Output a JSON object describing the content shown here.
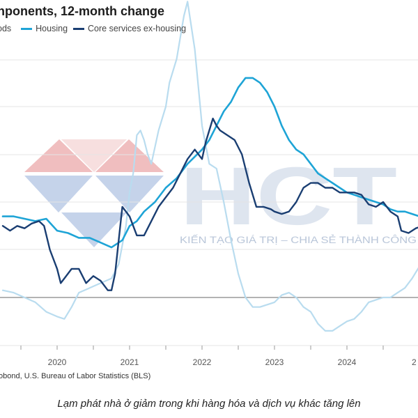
{
  "header": {
    "title": "nponents, 12-month change"
  },
  "legend_labels": [
    {
      "label": "ods",
      "color": "#b9dcef"
    },
    {
      "label": "Housing",
      "color": "#1ea4d6"
    },
    {
      "label": "Core services ex-housing",
      "color": "#1a3e72"
    }
  ],
  "source": "obond, U.S. Bureau of Labor Statistics (BLS)",
  "caption": "Lạm phát nhà ở giảm trong khi hàng hóa và dịch vụ khác tăng lên",
  "watermark": {
    "brand": "HCT",
    "tagline": "KIẾN TẠO GIÁ TRỊ – CHIA SẺ THÀNH CÔNG",
    "colors": {
      "red": "#e9a2a4",
      "blue": "#9fb6dc",
      "text": "#a8b8cf"
    }
  },
  "chart_data": {
    "type": "line",
    "x_ticks": [
      "2020",
      "2021",
      "2022",
      "2023",
      "2024",
      "2"
    ],
    "x_unit": "year",
    "xlim": [
      2019.25,
      2025.05
    ],
    "y_axis_labels": "not visible (cropped)",
    "grid": "horizontal",
    "series": [
      {
        "name": "ods",
        "color": "#b9dcef",
        "x": [
          2019.25,
          2019.4,
          2019.55,
          2019.7,
          2019.85,
          2020.0,
          2020.1,
          2020.2,
          2020.3,
          2020.45,
          2020.6,
          2020.75,
          2020.85,
          2020.95,
          2021.0,
          2021.05,
          2021.1,
          2021.15,
          2021.2,
          2021.25,
          2021.3,
          2021.4,
          2021.5,
          2021.55,
          2021.65,
          2021.75,
          2021.8,
          2021.9,
          2022.0,
          2022.1,
          2022.2,
          2022.3,
          2022.4,
          2022.5,
          2022.6,
          2022.7,
          2022.8,
          2022.9,
          2023.0,
          2023.1,
          2023.2,
          2023.3,
          2023.4,
          2023.5,
          2023.6,
          2023.7,
          2023.8,
          2023.9,
          2024.0,
          2024.1,
          2024.2,
          2024.3,
          2024.4,
          2024.5,
          2024.6,
          2024.7,
          2024.8,
          2024.9,
          2025.0,
          2025.05
        ],
        "y": [
          0.15,
          0.1,
          0.0,
          -0.1,
          -0.3,
          -0.4,
          -0.45,
          -0.2,
          0.1,
          0.2,
          0.3,
          0.4,
          0.7,
          1.5,
          2.2,
          2.6,
          3.4,
          3.5,
          3.3,
          3.0,
          2.8,
          3.5,
          4.0,
          4.5,
          5.0,
          5.9,
          6.2,
          5.2,
          3.6,
          2.8,
          2.7,
          2.0,
          1.2,
          0.5,
          0.0,
          -0.2,
          -0.2,
          -0.15,
          -0.1,
          0.05,
          0.1,
          0.0,
          -0.2,
          -0.3,
          -0.55,
          -0.7,
          -0.7,
          -0.6,
          -0.5,
          -0.45,
          -0.3,
          -0.1,
          -0.05,
          0.0,
          0.0,
          0.1,
          0.2,
          0.4,
          0.65,
          0.75
        ]
      },
      {
        "name": "Housing",
        "color": "#1ea4d6",
        "x": [
          2019.25,
          2019.4,
          2019.55,
          2019.7,
          2019.85,
          2020.0,
          2020.15,
          2020.3,
          2020.45,
          2020.6,
          2020.75,
          2020.9,
          2021.0,
          2021.1,
          2021.2,
          2021.35,
          2021.5,
          2021.65,
          2021.8,
          2022.0,
          2022.1,
          2022.2,
          2022.3,
          2022.4,
          2022.5,
          2022.55,
          2022.6,
          2022.7,
          2022.8,
          2022.9,
          2023.0,
          2023.1,
          2023.2,
          2023.3,
          2023.4,
          2023.5,
          2023.6,
          2023.7,
          2023.8,
          2023.9,
          2024.0,
          2024.1,
          2024.2,
          2024.3,
          2024.4,
          2024.5,
          2024.6,
          2024.7,
          2024.8,
          2024.9,
          2025.0,
          2025.05
        ],
        "y": [
          1.7,
          1.7,
          1.65,
          1.6,
          1.65,
          1.4,
          1.35,
          1.25,
          1.25,
          1.15,
          1.05,
          1.2,
          1.5,
          1.6,
          1.8,
          2.0,
          2.3,
          2.5,
          2.8,
          3.1,
          3.3,
          3.6,
          3.9,
          4.1,
          4.4,
          4.5,
          4.6,
          4.6,
          4.5,
          4.3,
          4.0,
          3.6,
          3.3,
          3.1,
          3.0,
          2.8,
          2.6,
          2.5,
          2.4,
          2.3,
          2.2,
          2.15,
          2.1,
          2.05,
          2.0,
          1.95,
          1.85,
          1.8,
          1.8,
          1.75,
          1.7,
          1.7
        ]
      },
      {
        "name": "Core services ex-housing",
        "color": "#1a3e72",
        "x": [
          2019.25,
          2019.35,
          2019.45,
          2019.55,
          2019.65,
          2019.75,
          2019.82,
          2019.9,
          2020.0,
          2020.05,
          2020.1,
          2020.2,
          2020.3,
          2020.4,
          2020.5,
          2020.6,
          2020.7,
          2020.75,
          2020.8,
          2020.85,
          2020.9,
          2021.0,
          2021.1,
          2021.2,
          2021.3,
          2021.4,
          2021.5,
          2021.6,
          2021.7,
          2021.8,
          2021.9,
          2022.0,
          2022.05,
          2022.15,
          2022.2,
          2022.25,
          2022.35,
          2022.45,
          2022.55,
          2022.65,
          2022.75,
          2022.85,
          2022.95,
          2023.0,
          2023.1,
          2023.2,
          2023.3,
          2023.4,
          2023.5,
          2023.6,
          2023.7,
          2023.8,
          2023.9,
          2024.0,
          2024.1,
          2024.2,
          2024.3,
          2024.4,
          2024.5,
          2024.6,
          2024.7,
          2024.75,
          2024.85,
          2024.95,
          2025.05
        ],
        "y": [
          1.5,
          1.4,
          1.5,
          1.45,
          1.55,
          1.6,
          1.5,
          1.0,
          0.6,
          0.3,
          0.4,
          0.6,
          0.6,
          0.3,
          0.45,
          0.35,
          0.15,
          0.15,
          0.5,
          1.2,
          1.9,
          1.7,
          1.3,
          1.3,
          1.6,
          1.9,
          2.1,
          2.3,
          2.6,
          2.9,
          3.1,
          2.9,
          3.25,
          3.75,
          3.6,
          3.5,
          3.4,
          3.3,
          3.0,
          2.4,
          1.9,
          1.9,
          1.85,
          1.8,
          1.75,
          1.8,
          2.0,
          2.3,
          2.4,
          2.4,
          2.3,
          2.3,
          2.2,
          2.2,
          2.2,
          2.15,
          1.95,
          1.9,
          2.0,
          1.8,
          1.7,
          1.4,
          1.35,
          1.45,
          1.5
        ]
      }
    ]
  }
}
